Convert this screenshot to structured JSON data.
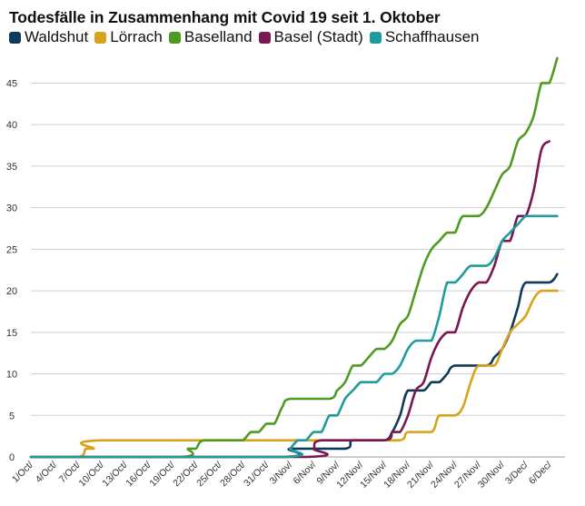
{
  "chart_data": {
    "type": "line",
    "title": "Todesfälle in Zusammenhang mit Covid 19 seit 1. Oktober",
    "xlabel": "",
    "ylabel": "",
    "ylim": [
      0,
      48
    ],
    "yticks": [
      0,
      5,
      10,
      15,
      20,
      25,
      30,
      35,
      40,
      45
    ],
    "grid": "horizontal",
    "legend_position": "top",
    "x_range": [
      "1/Oct",
      "8/Dec"
    ],
    "xtick_labels": [
      "1/Oct/",
      "4/Oct/",
      "7/Oct/",
      "10/Oct/",
      "13/Oct/",
      "16/Oct/",
      "19/Oct/",
      "22/Oct/",
      "25/Oct/",
      "28/Oct/",
      "31/Oct/",
      "3/Nov/",
      "6/Nov/",
      "9/Nov/",
      "12/Nov/",
      "15/Nov/",
      "18/Nov/",
      "21/Nov/",
      "24/Nov/",
      "27/Nov/",
      "30/Nov/",
      "3/Dec/",
      "6/Dec/"
    ],
    "series": [
      {
        "name": "Waldshut",
        "color": "#0f3b5a",
        "points": [
          [
            "1/Oct",
            0
          ],
          [
            "2/Nov",
            0
          ],
          [
            "3/Nov",
            1
          ],
          [
            "10/Nov",
            1
          ],
          [
            "11/Nov",
            2
          ],
          [
            "15/Nov",
            2
          ],
          [
            "16/Nov",
            3
          ],
          [
            "17/Nov",
            5
          ],
          [
            "18/Nov",
            8
          ],
          [
            "20/Nov",
            8
          ],
          [
            "21/Nov",
            9
          ],
          [
            "22/Nov",
            9
          ],
          [
            "23/Nov",
            10
          ],
          [
            "24/Nov",
            11
          ],
          [
            "28/Nov",
            11
          ],
          [
            "29/Nov",
            12
          ],
          [
            "30/Nov",
            13
          ],
          [
            "1/Dec",
            15
          ],
          [
            "2/Dec",
            18
          ],
          [
            "3/Dec",
            21
          ],
          [
            "6/Dec",
            21
          ],
          [
            "7/Dec",
            22
          ]
        ]
      },
      {
        "name": "Lörrach",
        "color": "#d9a21b",
        "points": [
          [
            "1/Oct",
            0
          ],
          [
            "7/Oct",
            0
          ],
          [
            "8/Oct",
            1
          ],
          [
            "9/Oct",
            1
          ],
          [
            "10/Oct",
            2
          ],
          [
            "12/Nov",
            2
          ],
          [
            "17/Nov",
            2
          ],
          [
            "18/Nov",
            3
          ],
          [
            "21/Nov",
            3
          ],
          [
            "22/Nov",
            5
          ],
          [
            "24/Nov",
            5
          ],
          [
            "25/Nov",
            6
          ],
          [
            "26/Nov",
            9
          ],
          [
            "27/Nov",
            11
          ],
          [
            "29/Nov",
            11
          ],
          [
            "30/Nov",
            13
          ],
          [
            "1/Dec",
            15
          ],
          [
            "2/Dec",
            16
          ],
          [
            "3/Dec",
            17
          ],
          [
            "4/Dec",
            19
          ],
          [
            "5/Dec",
            20
          ],
          [
            "7/Dec",
            20
          ]
        ]
      },
      {
        "name": "Baselland",
        "color": "#4f9a21",
        "points": [
          [
            "1/Oct",
            0
          ],
          [
            "20/Oct",
            0
          ],
          [
            "21/Oct",
            1
          ],
          [
            "22/Oct",
            1
          ],
          [
            "23/Oct",
            2
          ],
          [
            "27/Oct",
            2
          ],
          [
            "28/Oct",
            2
          ],
          [
            "29/Oct",
            3
          ],
          [
            "30/Oct",
            3
          ],
          [
            "31/Oct",
            4
          ],
          [
            "1/Nov",
            4
          ],
          [
            "2/Nov",
            6
          ],
          [
            "3/Nov",
            7
          ],
          [
            "8/Nov",
            7
          ],
          [
            "9/Nov",
            8
          ],
          [
            "10/Nov",
            9
          ],
          [
            "11/Nov",
            11
          ],
          [
            "12/Nov",
            11
          ],
          [
            "13/Nov",
            12
          ],
          [
            "14/Nov",
            13
          ],
          [
            "15/Nov",
            13
          ],
          [
            "16/Nov",
            14
          ],
          [
            "17/Nov",
            16
          ],
          [
            "18/Nov",
            17
          ],
          [
            "19/Nov",
            20
          ],
          [
            "20/Nov",
            23
          ],
          [
            "21/Nov",
            25
          ],
          [
            "22/Nov",
            26
          ],
          [
            "23/Nov",
            27
          ],
          [
            "24/Nov",
            27
          ],
          [
            "25/Nov",
            29
          ],
          [
            "27/Nov",
            29
          ],
          [
            "28/Nov",
            30
          ],
          [
            "29/Nov",
            32
          ],
          [
            "30/Nov",
            34
          ],
          [
            "1/Dec",
            35
          ],
          [
            "2/Dec",
            38
          ],
          [
            "3/Dec",
            39
          ],
          [
            "4/Dec",
            41
          ],
          [
            "5/Dec",
            45
          ],
          [
            "6/Dec",
            45
          ],
          [
            "7/Dec",
            48
          ]
        ]
      },
      {
        "name": "Basel (Stadt)",
        "color": "#7a1650",
        "points": [
          [
            "1/Oct",
            0
          ],
          [
            "5/Nov",
            0
          ],
          [
            "6/Nov",
            1
          ],
          [
            "7/Nov",
            2
          ],
          [
            "15/Nov",
            2
          ],
          [
            "16/Nov",
            3
          ],
          [
            "17/Nov",
            3
          ],
          [
            "18/Nov",
            5
          ],
          [
            "19/Nov",
            8
          ],
          [
            "20/Nov",
            9
          ],
          [
            "21/Nov",
            12
          ],
          [
            "22/Nov",
            14
          ],
          [
            "23/Nov",
            15
          ],
          [
            "24/Nov",
            15
          ],
          [
            "25/Nov",
            18
          ],
          [
            "26/Nov",
            20
          ],
          [
            "27/Nov",
            21
          ],
          [
            "28/Nov",
            21
          ],
          [
            "29/Nov",
            23
          ],
          [
            "30/Nov",
            26
          ],
          [
            "1/Dec",
            26
          ],
          [
            "2/Dec",
            29
          ],
          [
            "3/Dec",
            29
          ],
          [
            "4/Dec",
            32
          ],
          [
            "5/Dec",
            37
          ],
          [
            "6/Dec",
            38
          ]
        ]
      },
      {
        "name": "Schaffhausen",
        "color": "#1f9b9b",
        "points": [
          [
            "1/Oct",
            0
          ],
          [
            "2/Nov",
            0
          ],
          [
            "3/Nov",
            1
          ],
          [
            "4/Nov",
            2
          ],
          [
            "5/Nov",
            2
          ],
          [
            "6/Nov",
            3
          ],
          [
            "7/Nov",
            3
          ],
          [
            "8/Nov",
            5
          ],
          [
            "9/Nov",
            5
          ],
          [
            "10/Nov",
            7
          ],
          [
            "11/Nov",
            8
          ],
          [
            "12/Nov",
            9
          ],
          [
            "13/Nov",
            9
          ],
          [
            "14/Nov",
            9
          ],
          [
            "15/Nov",
            10
          ],
          [
            "16/Nov",
            10
          ],
          [
            "17/Nov",
            11
          ],
          [
            "18/Nov",
            13
          ],
          [
            "19/Nov",
            14
          ],
          [
            "20/Nov",
            14
          ],
          [
            "21/Nov",
            14
          ],
          [
            "22/Nov",
            17
          ],
          [
            "23/Nov",
            21
          ],
          [
            "24/Nov",
            21
          ],
          [
            "25/Nov",
            22
          ],
          [
            "26/Nov",
            23
          ],
          [
            "28/Nov",
            23
          ],
          [
            "29/Nov",
            24
          ],
          [
            "30/Nov",
            26
          ],
          [
            "1/Dec",
            27
          ],
          [
            "2/Dec",
            28
          ],
          [
            "3/Dec",
            29
          ],
          [
            "4/Dec",
            29
          ],
          [
            "5/Dec",
            29
          ],
          [
            "7/Dec",
            29
          ]
        ]
      }
    ]
  }
}
